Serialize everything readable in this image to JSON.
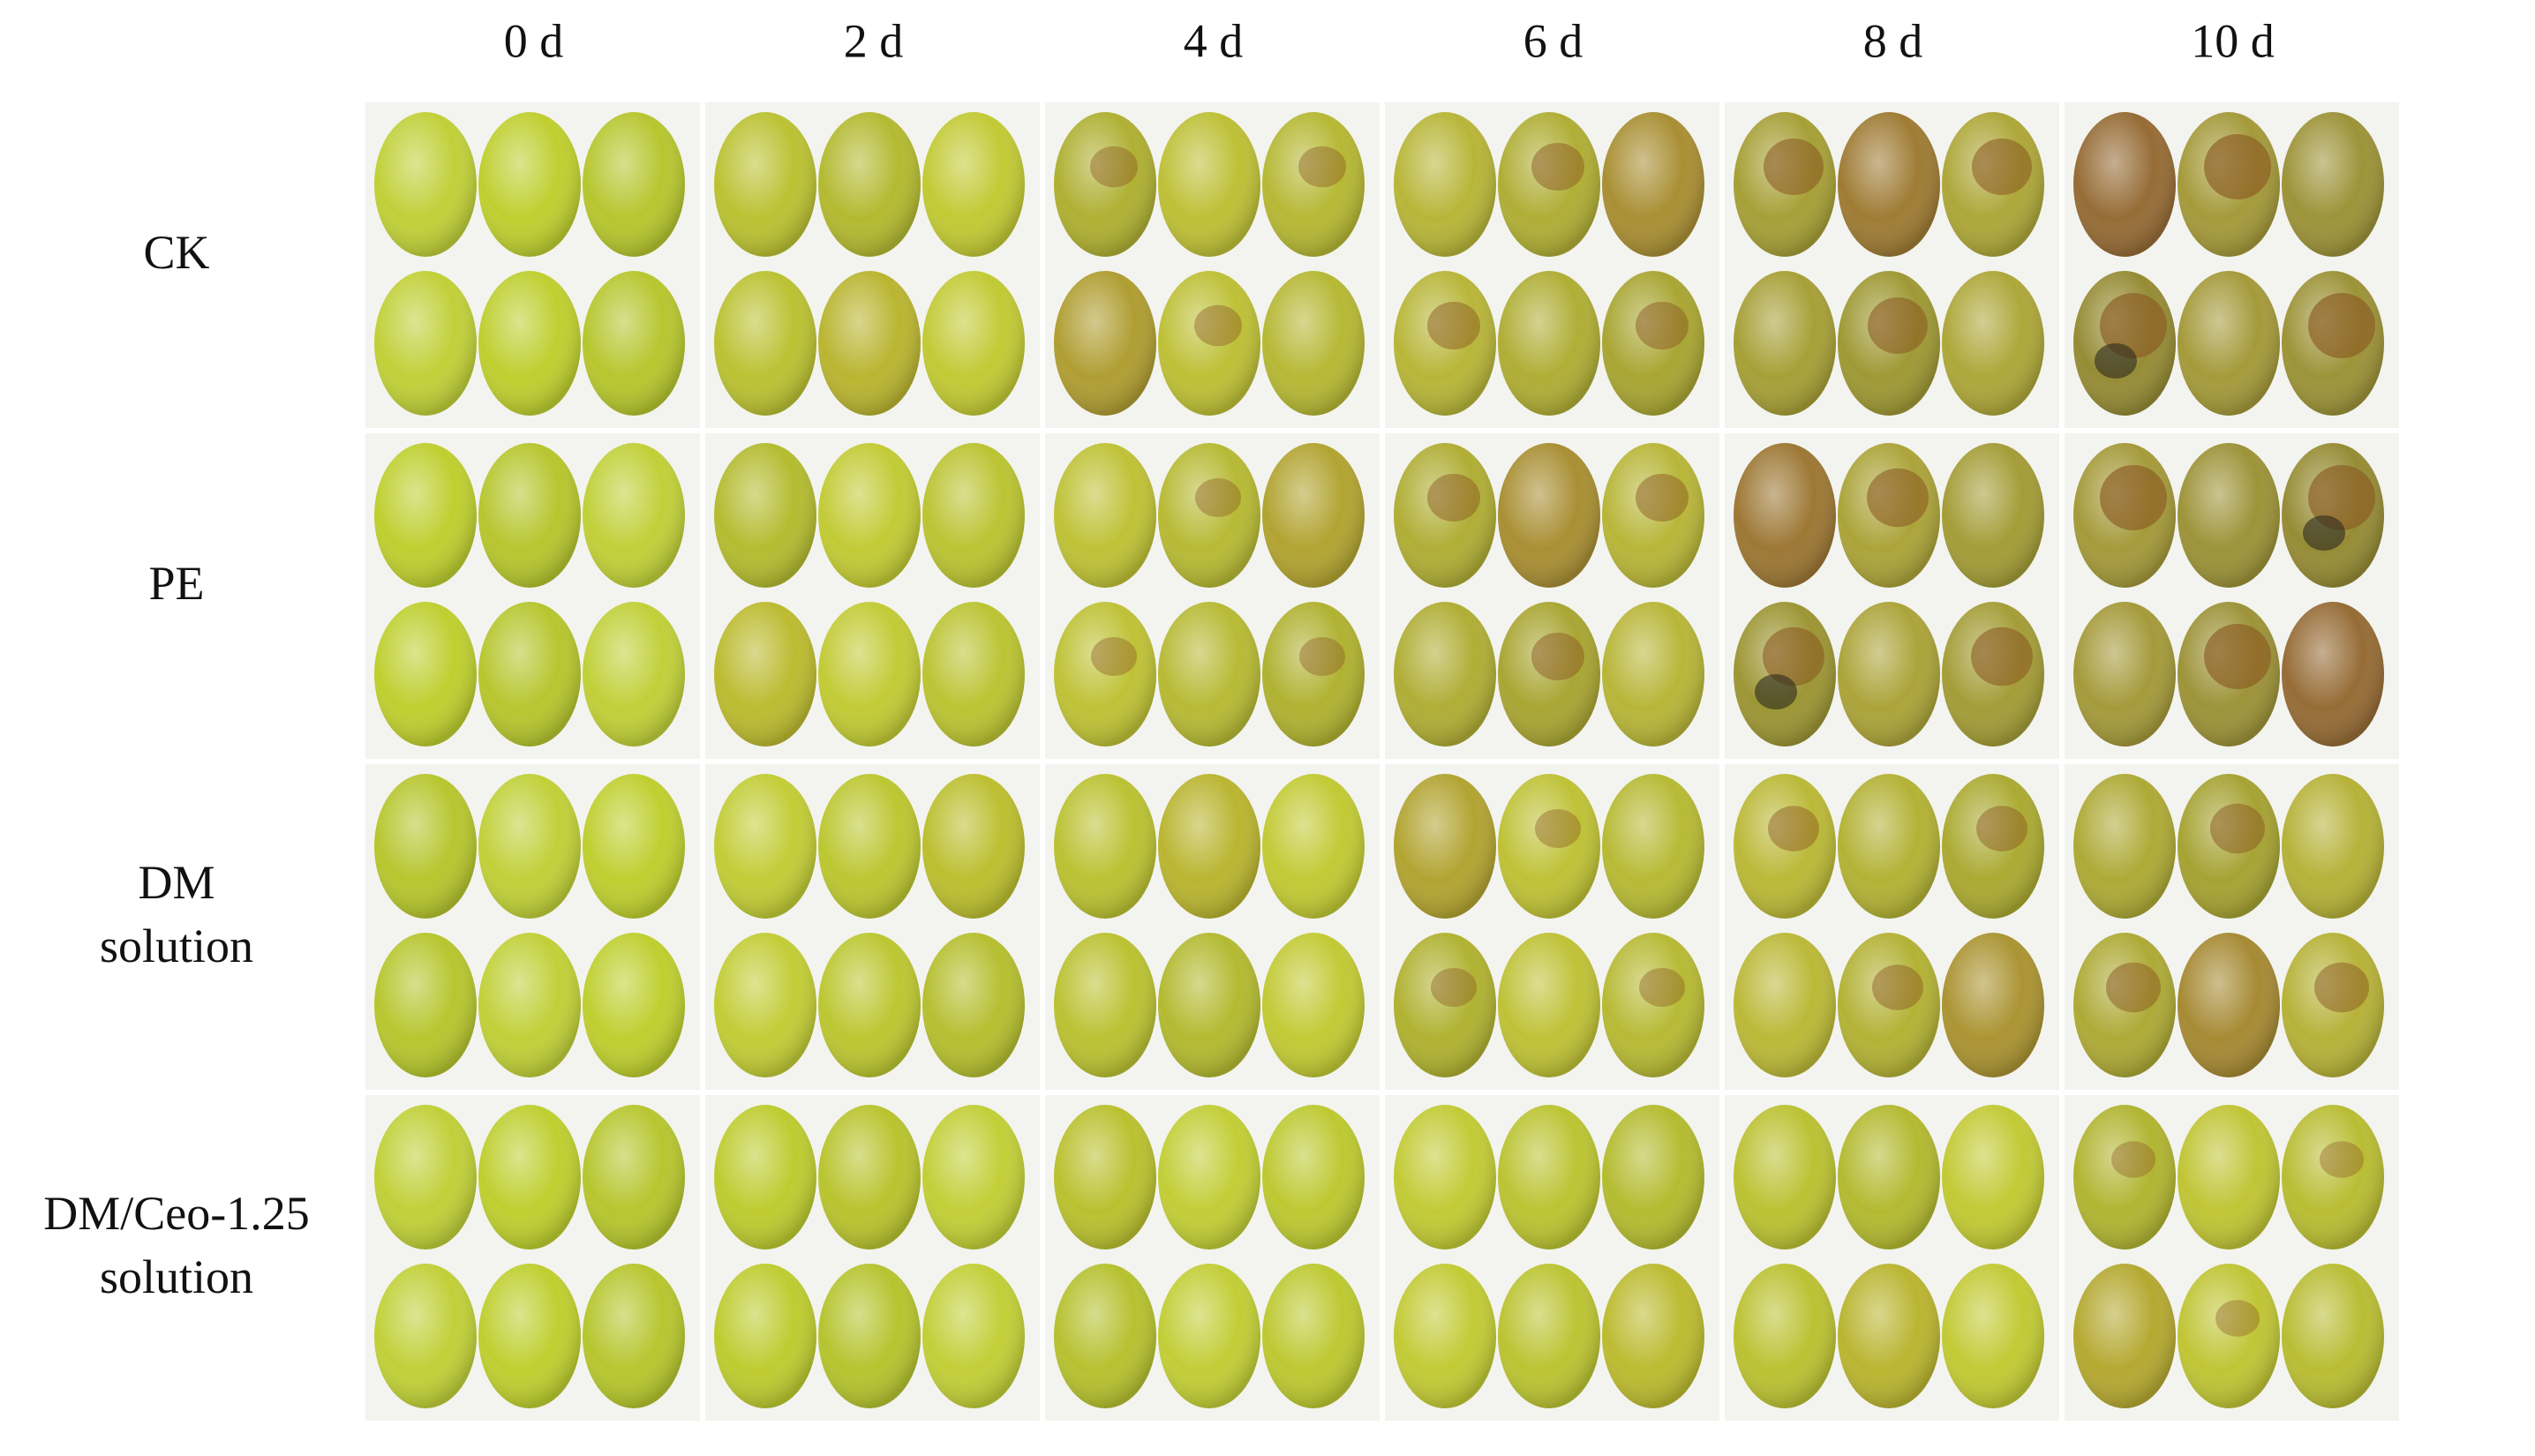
{
  "columns": [
    "0 d",
    "2 d",
    "4 d",
    "6 d",
    "8 d",
    "10 d"
  ],
  "rows": [
    [
      "CK"
    ],
    [
      "PE"
    ],
    [
      "DM",
      "solution"
    ],
    [
      "DM/Ceo-1.25",
      "solution"
    ]
  ]
}
